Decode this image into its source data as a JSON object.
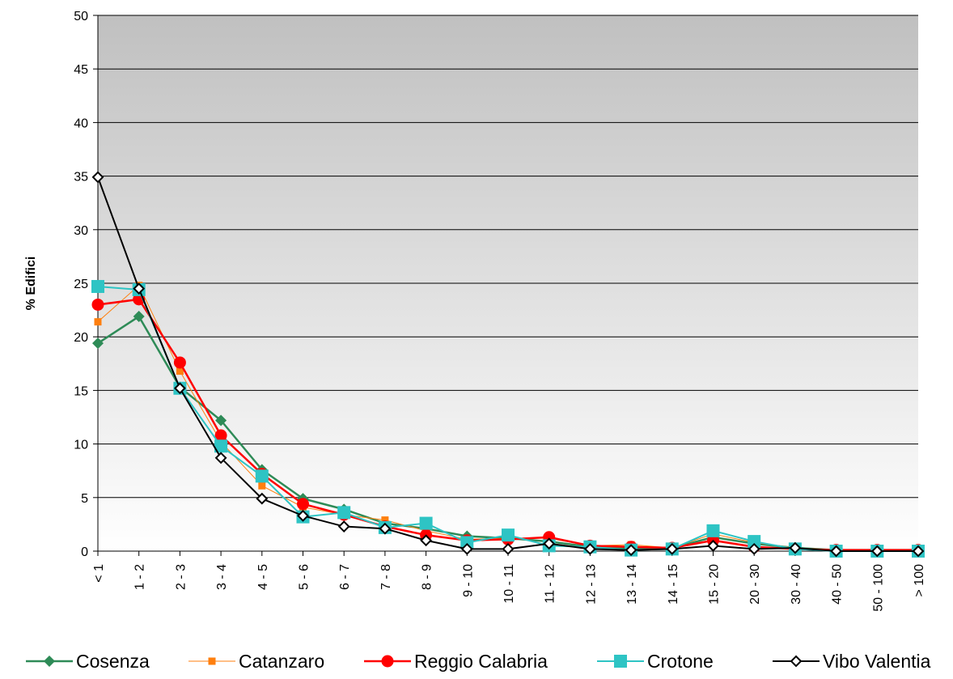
{
  "chart_data": {
    "type": "line",
    "ylabel": "% Edifici",
    "ylim": [
      0,
      50
    ],
    "yticks": [
      0,
      5,
      10,
      15,
      20,
      25,
      30,
      35,
      40,
      45,
      50
    ],
    "categories": [
      "< 1",
      "1 - 2",
      "2 - 3",
      "3 - 4",
      "4 - 5",
      "5 - 6",
      "6 - 7",
      "7 - 8",
      "8 - 9",
      "9 - 10",
      "10 - 11",
      "11 - 12",
      "12 - 13",
      "13 - 14",
      "14 - 15",
      "15 - 20",
      "20 - 30",
      "30 - 40",
      "40 - 50",
      "50 - 100",
      "> 100"
    ],
    "grid": true,
    "legend_position": "bottom",
    "series": [
      {
        "name": "Cosenza",
        "color": "#2e8b57",
        "marker": "diamond",
        "values": [
          19.4,
          21.9,
          15.3,
          12.2,
          7.6,
          4.9,
          3.9,
          2.6,
          2.1,
          1.4,
          1.2,
          0.9,
          0.4,
          0.3,
          0.3,
          1.3,
          0.7,
          0.3,
          0.1,
          0.1,
          0.1
        ]
      },
      {
        "name": "Catanzaro",
        "color": "#ff7f0e",
        "marker": "square-small",
        "values": [
          21.4,
          24.8,
          16.8,
          10.2,
          6.1,
          4.1,
          3.4,
          2.9,
          1.9,
          1.1,
          1.2,
          1.2,
          0.5,
          0.6,
          0.3,
          1.6,
          0.8,
          0.3,
          0.1,
          0.1,
          0.1
        ]
      },
      {
        "name": "Reggio Calabria",
        "color": "#ff0000",
        "marker": "circle",
        "values": [
          23.0,
          23.5,
          17.6,
          10.8,
          7.2,
          4.4,
          3.4,
          2.3,
          1.5,
          1.0,
          1.1,
          1.3,
          0.5,
          0.4,
          0.3,
          1.0,
          0.4,
          0.2,
          0.1,
          0.1,
          0.1
        ]
      },
      {
        "name": "Crotone",
        "color": "#2ec4c4",
        "marker": "square",
        "values": [
          24.7,
          24.4,
          15.2,
          9.8,
          7.0,
          3.2,
          3.6,
          2.2,
          2.6,
          0.8,
          1.5,
          0.5,
          0.4,
          0.1,
          0.2,
          1.9,
          0.9,
          0.2,
          0.0,
          0.0,
          0.0
        ]
      },
      {
        "name": "Vibo Valentia",
        "color": "#000000",
        "marker": "diamond-open",
        "values": [
          34.9,
          24.5,
          15.2,
          8.7,
          4.9,
          3.3,
          2.3,
          2.1,
          1.0,
          0.2,
          0.2,
          0.7,
          0.2,
          0.1,
          0.2,
          0.5,
          0.2,
          0.3,
          0.0,
          0.0,
          0.0
        ]
      }
    ]
  }
}
